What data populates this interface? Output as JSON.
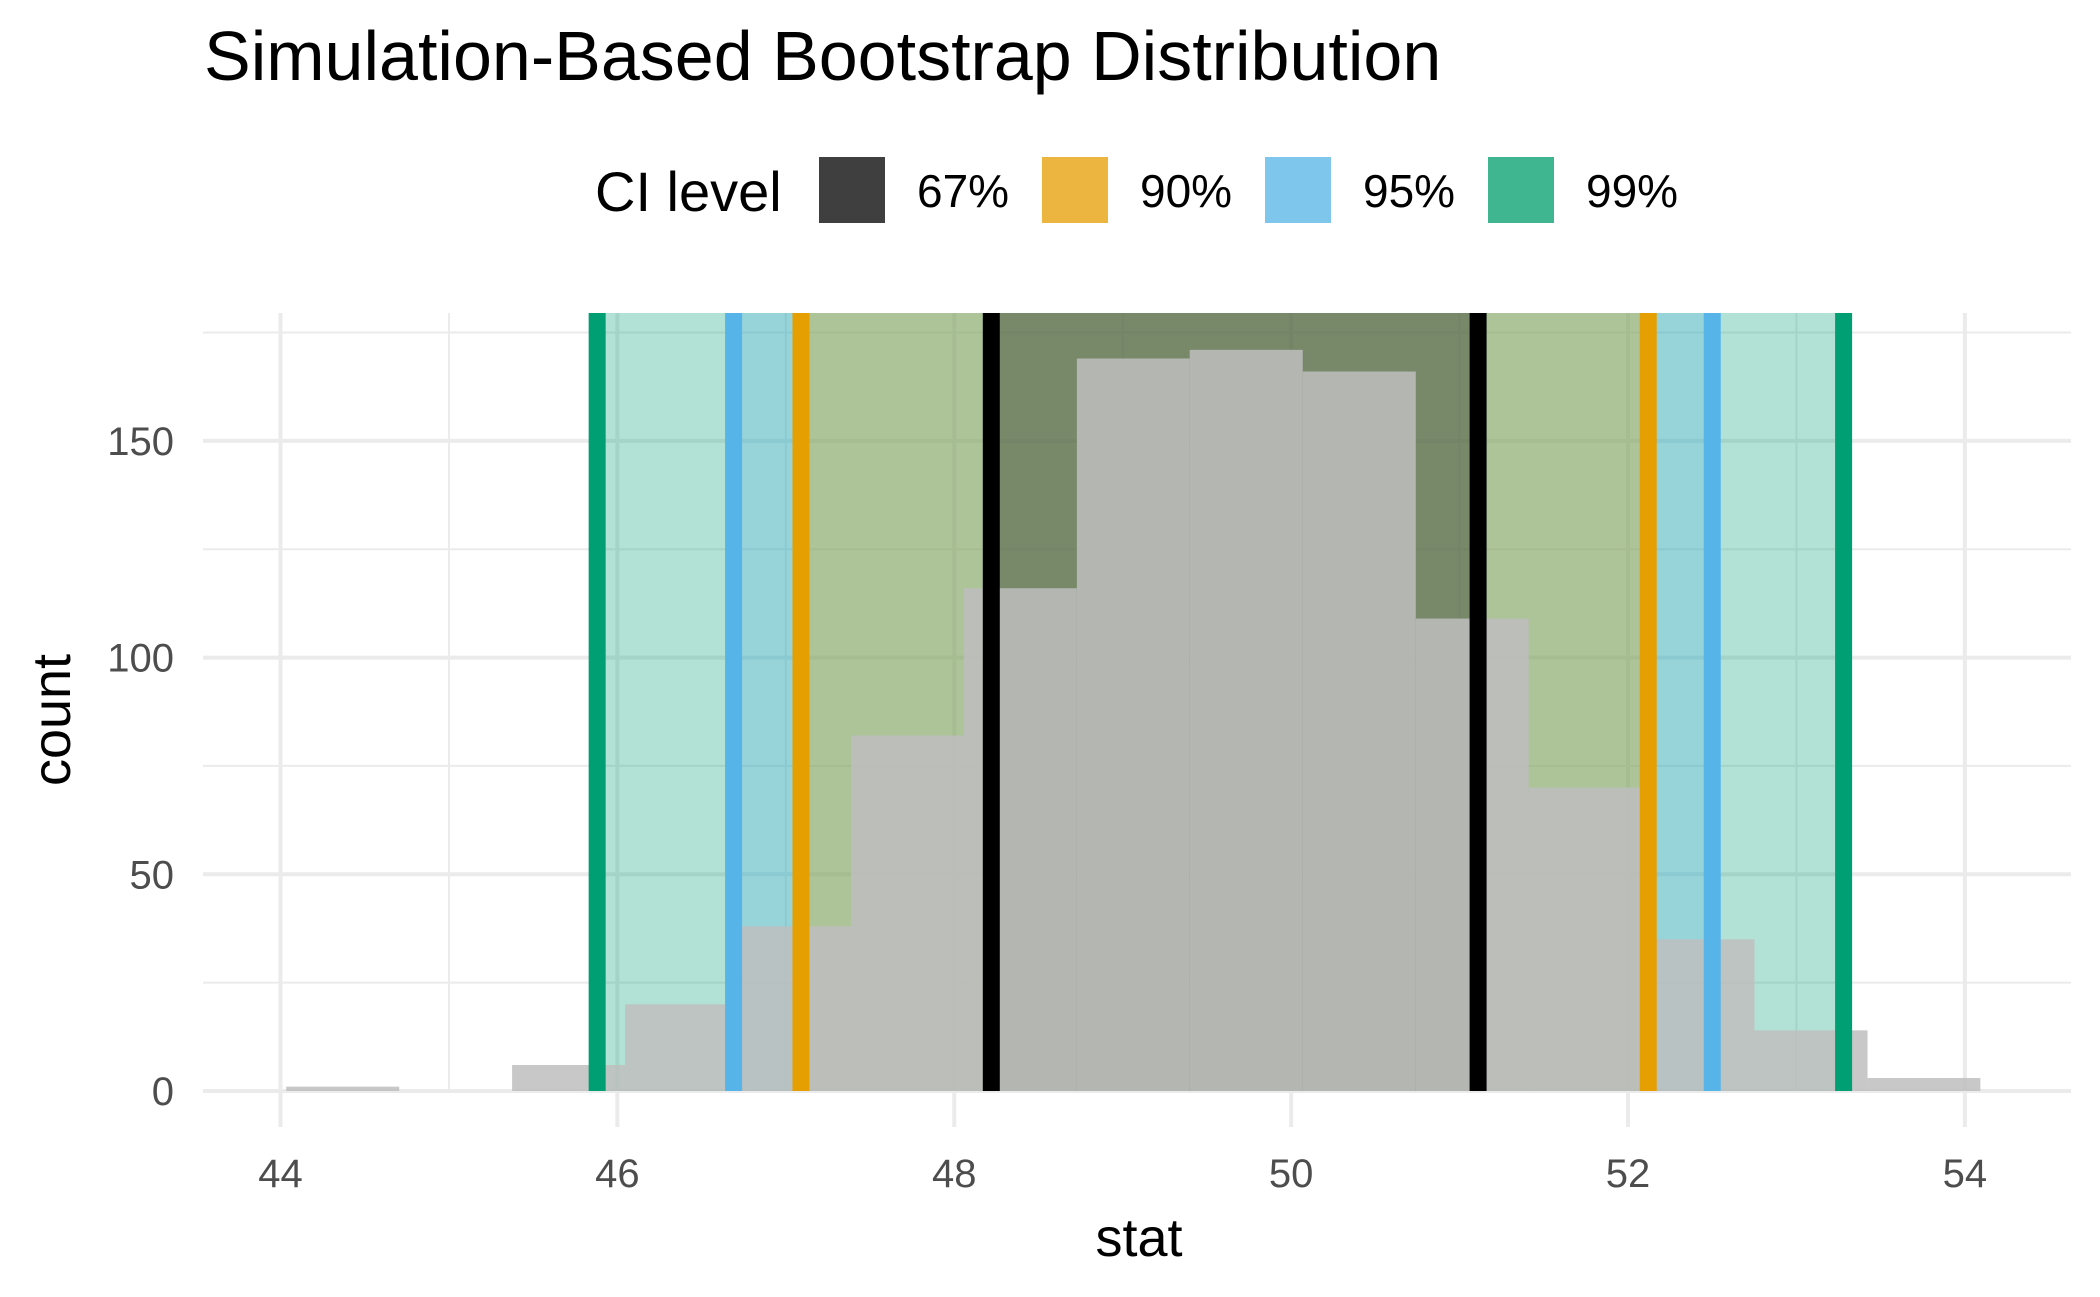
{
  "chart_data": {
    "type": "bar",
    "subtype": "histogram-with-ci-shading",
    "title": "Simulation-Based Bootstrap Distribution",
    "xlabel": "stat",
    "ylabel": "count",
    "xlim": [
      43.54,
      54.63
    ],
    "ylim": [
      0,
      179.5
    ],
    "x_ticks": [
      44,
      46,
      48,
      50,
      52,
      54
    ],
    "x_tick_labels": [
      "44",
      "46",
      "48",
      "50",
      "52",
      "54"
    ],
    "x_minor": [
      45,
      47,
      49,
      51,
      53
    ],
    "y_ticks": [
      0,
      50,
      100,
      150
    ],
    "y_tick_labels": [
      "0",
      "50",
      "100",
      "150"
    ],
    "y_minor": [
      25,
      75,
      125,
      175
    ],
    "grid": true,
    "bins": [
      {
        "x0": 44.034,
        "x1": 44.705,
        "count": 1
      },
      {
        "x0": 44.705,
        "x1": 45.375,
        "count": 0
      },
      {
        "x0": 45.375,
        "x1": 46.046,
        "count": 6
      },
      {
        "x0": 46.046,
        "x1": 46.716,
        "count": 20
      },
      {
        "x0": 46.716,
        "x1": 47.387,
        "count": 38
      },
      {
        "x0": 47.387,
        "x1": 48.057,
        "count": 82
      },
      {
        "x0": 48.057,
        "x1": 48.728,
        "count": 116
      },
      {
        "x0": 48.728,
        "x1": 49.398,
        "count": 169
      },
      {
        "x0": 49.398,
        "x1": 50.069,
        "count": 171
      },
      {
        "x0": 50.069,
        "x1": 50.74,
        "count": 166
      },
      {
        "x0": 50.74,
        "x1": 51.41,
        "count": 109
      },
      {
        "x0": 51.41,
        "x1": 52.081,
        "count": 70
      },
      {
        "x0": 52.081,
        "x1": 52.751,
        "count": 35
      },
      {
        "x0": 52.751,
        "x1": 53.422,
        "count": 14
      },
      {
        "x0": 53.422,
        "x1": 54.092,
        "count": 3
      }
    ],
    "bar_color": "#bebebe",
    "legend": {
      "title": "CI level",
      "position": "top",
      "entries": [
        {
          "label": "67%",
          "key_color": "#3f3f3f"
        },
        {
          "label": "90%",
          "key_color": "#ebb53f"
        },
        {
          "label": "95%",
          "key_color": "#7fc6ec"
        },
        {
          "label": "99%",
          "key_color": "#3fb68f"
        }
      ]
    },
    "intervals": [
      {
        "level": "99%",
        "lower": 45.88,
        "upper": 53.28,
        "line_color": "#009E73",
        "fill_color": "#009E73"
      },
      {
        "level": "95%",
        "lower": 46.69,
        "upper": 52.5,
        "line_color": "#56B4E9",
        "fill_color": "#56B4E9"
      },
      {
        "level": "90%",
        "lower": 47.09,
        "upper": 52.12,
        "line_color": "#E69F00",
        "fill_color": "#E69F00"
      },
      {
        "level": "67%",
        "lower": 48.22,
        "upper": 51.11,
        "line_color": "#000000",
        "fill_color": "#000000"
      }
    ]
  }
}
